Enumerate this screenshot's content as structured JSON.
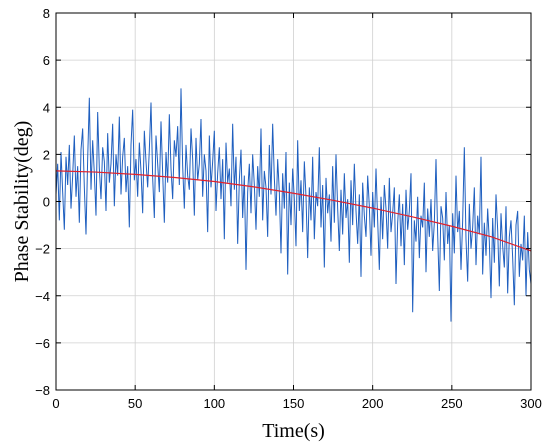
{
  "chart_data": {
    "type": "line",
    "title": "",
    "xlabel": "Time(s)",
    "ylabel": "Phase Stability(deg)",
    "xlim": [
      0,
      300
    ],
    "ylim": [
      -8,
      8
    ],
    "xticks": [
      0,
      50,
      100,
      150,
      200,
      250,
      300
    ],
    "yticks": [
      -8,
      -6,
      -4,
      -2,
      0,
      2,
      4,
      6,
      8
    ],
    "grid": true,
    "legend": "none",
    "series": [
      {
        "kind": "noisy-measurement",
        "color": "#1f5fbf",
        "x_start": 0,
        "x_end": 300,
        "values": [
          0.3,
          1.6,
          -0.8,
          2.1,
          0.4,
          -1.2,
          1.9,
          0.7,
          2.4,
          -0.3,
          1.1,
          2.8,
          0.2,
          1.5,
          -0.9,
          2.2,
          3.1,
          0.6,
          -1.4,
          1.8,
          4.4,
          0.5,
          2.6,
          1.2,
          -0.6,
          3.8,
          1.4,
          0.1,
          2.3,
          1.7,
          -0.4,
          2.9,
          0.8,
          1.6,
          3.3,
          -0.2,
          2.0,
          1.1,
          3.6,
          0.3,
          1.9,
          2.7,
          0.4,
          1.5,
          -1.1,
          2.4,
          3.9,
          0.9,
          1.8,
          0.2,
          2.5,
          1.3,
          -0.5,
          3.0,
          1.7,
          0.6,
          2.2,
          4.2,
          1.0,
          -0.7,
          2.8,
          1.6,
          0.4,
          3.4,
          1.2,
          -0.9,
          2.1,
          0.8,
          3.7,
          1.4,
          0.1,
          2.6,
          1.9,
          3.2,
          0.7,
          4.8,
          1.5,
          -0.3,
          2.4,
          1.1,
          0.5,
          3.1,
          1.8,
          -0.6,
          2.7,
          0.9,
          1.6,
          3.5,
          0.2,
          2.0,
          1.3,
          -1.3,
          2.8,
          0.6,
          1.7,
          3.0,
          -0.4,
          1.2,
          2.3,
          0.1,
          1.8,
          -1.6,
          2.5,
          0.8,
          1.4,
          -0.2,
          3.3,
          0.5,
          1.9,
          -1.8,
          0.9,
          2.2,
          -0.7,
          1.1,
          -2.9,
          0.4,
          1.6,
          -0.5,
          2.0,
          0.7,
          -1.2,
          1.5,
          0.2,
          3.1,
          -0.8,
          1.3,
          0.6,
          -1.5,
          2.4,
          0.3,
          3.3,
          1.0,
          -0.6,
          1.8,
          0.4,
          -2.2,
          1.2,
          -0.3,
          2.1,
          -3.1,
          0.8,
          -1.0,
          1.4,
          0.1,
          -1.9,
          2.6,
          -0.4,
          0.9,
          -1.3,
          1.7,
          0.2,
          -2.4,
          0.6,
          -0.8,
          1.9,
          -1.6,
          0.4,
          -0.2,
          2.3,
          -1.1,
          0.7,
          -2.8,
          1.0,
          -0.5,
          0.3,
          -1.7,
          1.5,
          -0.9,
          2.0,
          -0.3,
          -2.1,
          0.5,
          -1.4,
          1.2,
          -0.7,
          0.1,
          -2.6,
          0.9,
          -1.0,
          1.6,
          -0.4,
          -1.8,
          0.3,
          -3.2,
          0.8,
          -0.6,
          -1.5,
          1.1,
          -0.2,
          -2.3,
          0.4,
          -1.1,
          1.4,
          -0.8,
          -2.9,
          0.2,
          -1.6,
          0.7,
          -0.3,
          -2.0,
          1.0,
          -1.3,
          -0.5,
          0.6,
          -3.5,
          -0.9,
          0.3,
          -1.9,
          -0.1,
          -2.7,
          0.5,
          -1.2,
          -0.4,
          1.2,
          -4.7,
          -0.8,
          -1.7,
          0.2,
          -2.4,
          -0.6,
          -1.1,
          0.8,
          -3.0,
          -0.3,
          -1.5,
          0.1,
          -2.1,
          -0.9,
          1.8,
          -1.4,
          -3.8,
          -0.2,
          -0.7,
          -2.5,
          0.4,
          -1.8,
          -1.0,
          -5.1,
          -0.5,
          -2.2,
          1.1,
          -1.3,
          -0.4,
          -2.9,
          -0.8,
          2.3,
          -1.6,
          -3.4,
          -0.1,
          -2.0,
          -1.1,
          0.6,
          -2.7,
          -0.6,
          -1.4,
          1.9,
          -3.1,
          -0.9,
          -2.3,
          -0.3,
          -1.7,
          -4.1,
          -0.7,
          -2.6,
          0.3,
          -1.2,
          -3.6,
          -0.5,
          -1.9,
          -2.8,
          -0.2,
          -3.9,
          -1.5,
          -0.8,
          -2.4,
          -4.4,
          -1.0,
          -0.4,
          -3.2,
          -1.8,
          -2.5,
          -0.6,
          -4.0,
          -1.3,
          -2.9,
          -3.5
        ]
      },
      {
        "kind": "quadratic-fit",
        "color": "#e0202a",
        "x": [
          0,
          25,
          50,
          75,
          100,
          125,
          150,
          175,
          200,
          225,
          250,
          275,
          300
        ],
        "y": [
          1.3,
          1.25,
          1.15,
          1.02,
          0.85,
          0.62,
          0.35,
          0.05,
          -0.28,
          -0.65,
          -1.05,
          -1.5,
          -2.1
        ]
      }
    ]
  },
  "colors": {
    "axis": "#000000",
    "grid": "#d0d0d0",
    "noise": "#1f5fbf",
    "fit": "#e0202a"
  }
}
